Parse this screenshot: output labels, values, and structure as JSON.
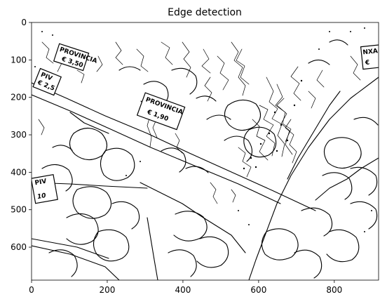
{
  "figure": {
    "title": "Edge detection",
    "image_description_note": "",
    "x_axis": {
      "ticks": [
        "0",
        "200",
        "400",
        "600",
        "800"
      ],
      "tick_values": [
        0,
        200,
        400,
        600,
        800
      ],
      "range": [
        0,
        917
      ]
    },
    "y_axis": {
      "ticks": [
        "0",
        "100",
        "200",
        "300",
        "400",
        "500",
        "600"
      ],
      "tick_values": [
        0,
        100,
        200,
        300,
        400,
        500,
        600
      ],
      "range": [
        0,
        688
      ]
    },
    "price_signs": [
      {
        "line1": "PROVINCIA",
        "line2": "€ 3,50"
      },
      {
        "line1": "PROVINCIA",
        "line2": "€ 1,90"
      },
      {
        "line1": "PIV",
        "line2": "€ 2,5"
      },
      {
        "line1": "PIV",
        "line2": "10"
      },
      {
        "line1": "NXA",
        "line2": "€"
      }
    ],
    "colors": {
      "background": "#ffffff",
      "edges": "#000000"
    }
  }
}
